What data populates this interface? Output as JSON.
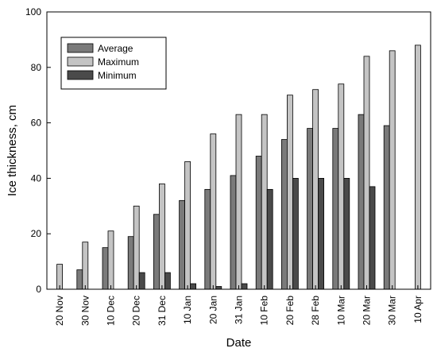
{
  "chart_data": {
    "type": "bar",
    "title": "",
    "xlabel": "Date",
    "ylabel": "Ice thickness, cm",
    "ylim": [
      0,
      100
    ],
    "yticks": [
      0,
      20,
      40,
      60,
      80,
      100
    ],
    "categories": [
      "20 Nov",
      "30 Nov",
      "10 Dec",
      "20 Dec",
      "31 Dec",
      "10 Jan",
      "20 Jan",
      "31 Jan",
      "10 Feb",
      "20 Feb",
      "28 Feb",
      "10 Mar",
      "20 Mar",
      "30 Mar",
      "10 Apr"
    ],
    "series": [
      {
        "name": "Average",
        "color": "#7a7a7a",
        "values": [
          null,
          7,
          15,
          19,
          27,
          32,
          36,
          41,
          48,
          54,
          58,
          58,
          63,
          59,
          null
        ]
      },
      {
        "name": "Maximum",
        "color": "#c4c4c4",
        "values": [
          9,
          17,
          21,
          30,
          38,
          46,
          56,
          63,
          63,
          70,
          72,
          74,
          84,
          86,
          88
        ]
      },
      {
        "name": "Minimum",
        "color": "#4a4a4a",
        "values": [
          null,
          null,
          null,
          6,
          6,
          2,
          1,
          2,
          36,
          40,
          40,
          40,
          37,
          null,
          null
        ]
      }
    ],
    "legend_position": "top-left",
    "grid": false
  }
}
